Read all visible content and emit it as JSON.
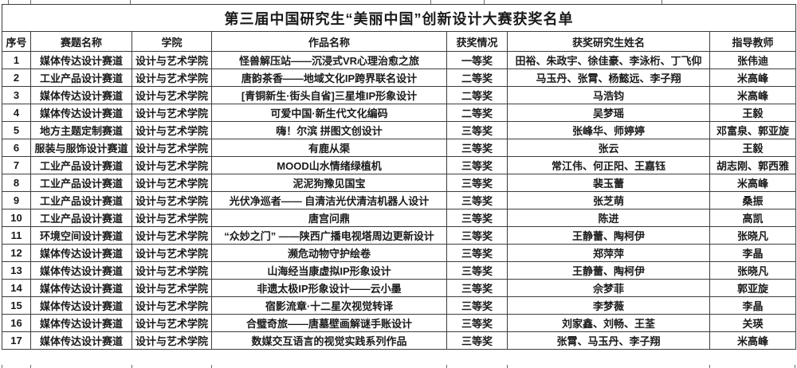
{
  "title": "第三届中国研究生“美丽中国”创新设计大赛获奖名单",
  "accent_color": "#e60000",
  "table": {
    "headers": [
      "序号",
      "赛题名称",
      "学院",
      "作品名称",
      "获奖情况",
      "获奖研究生姓名",
      "指导教师"
    ],
    "rows": [
      [
        "1",
        "媒体传达设计赛道",
        "设计与艺术学院",
        "怪兽解压站——沉浸式VR心理治愈之旅",
        "一等奖",
        "田裕、朱政宇、徐佳豪、李泳桁、丁飞仰",
        "张伟迪"
      ],
      [
        "2",
        "工业产品设计赛道",
        "设计与艺术学院",
        "唐韵茶香——地域文化IP跨界联名设计",
        "二等奖",
        "马玉丹、张霄、杨懿远、李子翔",
        "米高峰"
      ],
      [
        "3",
        "媒体传达设计赛道",
        "设计与艺术学院",
        "[青铜新生·街头自省]三星堆IP形象设计",
        "二等奖",
        "马浩钧",
        "米高峰"
      ],
      [
        "4",
        "媒体传达设计赛道",
        "设计与艺术学院",
        "可爱中国·新生代文化编码",
        "二等奖",
        "吴梦瑶",
        "王毅"
      ],
      [
        "5",
        "地方主题定制赛道",
        "设计与艺术学院",
        "嗨！尔滨 拼图文创设计",
        "三等奖",
        "张峰华、师婷婷",
        "邓富泉、郭亚旋"
      ],
      [
        "6",
        "服装与服饰设计赛道",
        "设计与艺术学院",
        "有鹿从渠",
        "三等奖",
        "张云",
        "王毅"
      ],
      [
        "7",
        "工业产品设计赛道",
        "设计与艺术学院",
        "MOOD山水情绪绿植机",
        "三等奖",
        "常江伟、何正阳、王嘉钰",
        "胡志刚、郭西雅"
      ],
      [
        "8",
        "工业产品设计赛道",
        "设计与艺术学院",
        "泥泥狗豫见国宝",
        "三等奖",
        "裴玉蕾",
        "米高峰"
      ],
      [
        "9",
        "工业产品设计赛道",
        "设计与艺术学院",
        "光伏净巡者—— 自清洁光伏清洁机器人设计",
        "三等奖",
        "张芝萌",
        "桑振"
      ],
      [
        "10",
        "工业产品设计赛道",
        "设计与艺术学院",
        "唐宫问鼎",
        "三等奖",
        "陈进",
        "高凯"
      ],
      [
        "11",
        "环境空间设计赛道",
        "设计与艺术学院",
        "“众妙之门” ——陕西广播电视塔周边更新设计",
        "三等奖",
        "王静蕾、陶柯伊",
        "张晓凡"
      ],
      [
        "12",
        "媒体传达设计赛道",
        "设计与艺术学院",
        "濒危动物守护绘卷",
        "三等奖",
        "郑萍萍",
        "李晶"
      ],
      [
        "13",
        "媒体传达设计赛道",
        "设计与艺术学院",
        "山海经当康虚拟IP形象设计",
        "三等奖",
        "王静蕾、陶柯伊",
        "张晓凡"
      ],
      [
        "14",
        "媒体传达设计赛道",
        "设计与艺术学院",
        "非遗太极IP形象设计——云小墨",
        "三等奖",
        "佘梦菲",
        "郭亚旋"
      ],
      [
        "15",
        "媒体传达设计赛道",
        "设计与艺术学院",
        "宿影流章·十二星次视觉转译",
        "三等奖",
        "李梦薇",
        "李晶"
      ],
      [
        "16",
        "媒体传达设计赛道",
        "设计与艺术学院",
        "合璧奇旅——唐墓壁画解谜手账设计",
        "三等奖",
        "刘家鑫、刘畅、王荃",
        "关瑛"
      ],
      [
        "17",
        "媒体传达设计赛道",
        "设计与艺术学院",
        "数媒交互语言的视觉实践系列作品",
        "三等奖",
        "张霄、马玉丹、李子翔",
        "米高峰"
      ]
    ]
  }
}
